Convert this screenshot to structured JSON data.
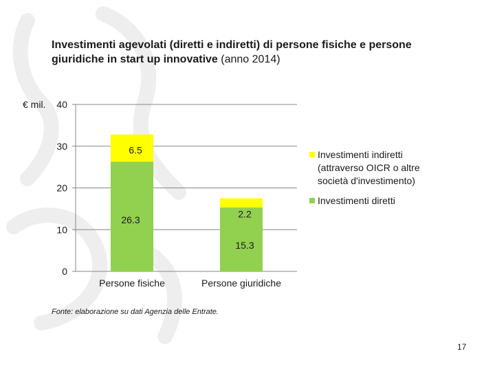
{
  "title": {
    "bold": "Investimenti agevolati (diretti e indiretti) di persone fisiche e persone giuridiche in start up innovative",
    "normal": " (anno 2014)"
  },
  "source": "Fonte: elaborazione su dati Agenzia delle Entrate.",
  "page_number": "17",
  "colors": {
    "direct": "#92d050",
    "indirect": "#ffff00",
    "axis": "#868686",
    "text": "#1a1a1a",
    "watermark": "#eeeeee"
  },
  "chart_data": {
    "type": "bar",
    "stacked": true,
    "title": "Investimenti agevolati (diretti e indiretti) di persone fisiche e persone giuridiche in start up innovative (anno 2014)",
    "ylabel": "€ mil.",
    "ylim": [
      0,
      40
    ],
    "yticks": [
      "0",
      "10",
      "20",
      "30",
      "40"
    ],
    "grid": true,
    "legend_position": "right",
    "categories": [
      "Persone fisiche",
      "Persone giuridiche"
    ],
    "series": [
      {
        "name": "Investimenti diretti",
        "values": [
          26.3,
          15.3
        ],
        "labels": [
          "26.3",
          "15.3"
        ]
      },
      {
        "name": "Investimenti indiretti (attraverso OICR o altre società d'investimento)",
        "values": [
          6.5,
          2.2
        ],
        "labels": [
          "6.5",
          "2.2"
        ]
      }
    ],
    "legend": [
      {
        "lines": [
          "Investimenti indiretti",
          "(attraverso OICR o altre",
          "società d'investimento)"
        ],
        "series": 1
      },
      {
        "lines": [
          "Investimenti diretti"
        ],
        "series": 0
      }
    ]
  }
}
